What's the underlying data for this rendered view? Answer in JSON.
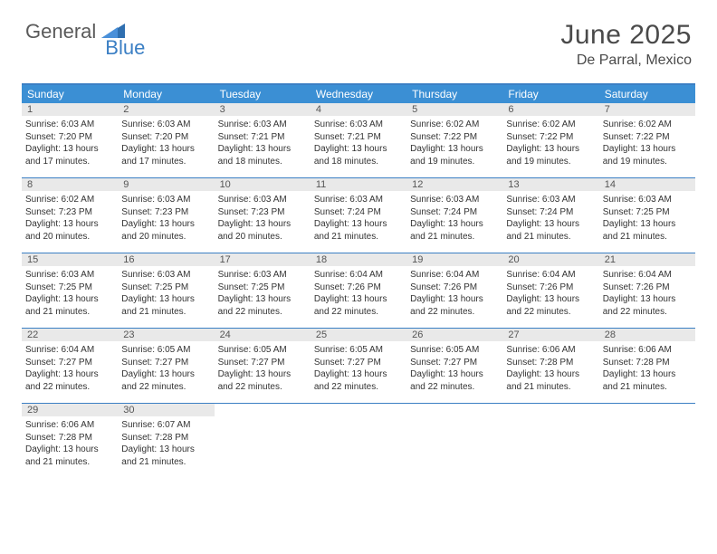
{
  "brand": {
    "part1": "General",
    "part2": "Blue"
  },
  "title": "June 2025",
  "location": "De Parral, Mexico",
  "colors": {
    "header_bg": "#3b8fd4",
    "border": "#3b7fc4",
    "daynum_bg": "#e9e9e9",
    "text": "#333333",
    "brand_gray": "#5a5a5a",
    "brand_blue": "#3b7fc4"
  },
  "dow": [
    "Sunday",
    "Monday",
    "Tuesday",
    "Wednesday",
    "Thursday",
    "Friday",
    "Saturday"
  ],
  "weeks": [
    [
      {
        "n": "1",
        "sr": "Sunrise: 6:03 AM",
        "ss": "Sunset: 7:20 PM",
        "d1": "Daylight: 13 hours",
        "d2": "and 17 minutes."
      },
      {
        "n": "2",
        "sr": "Sunrise: 6:03 AM",
        "ss": "Sunset: 7:20 PM",
        "d1": "Daylight: 13 hours",
        "d2": "and 17 minutes."
      },
      {
        "n": "3",
        "sr": "Sunrise: 6:03 AM",
        "ss": "Sunset: 7:21 PM",
        "d1": "Daylight: 13 hours",
        "d2": "and 18 minutes."
      },
      {
        "n": "4",
        "sr": "Sunrise: 6:03 AM",
        "ss": "Sunset: 7:21 PM",
        "d1": "Daylight: 13 hours",
        "d2": "and 18 minutes."
      },
      {
        "n": "5",
        "sr": "Sunrise: 6:02 AM",
        "ss": "Sunset: 7:22 PM",
        "d1": "Daylight: 13 hours",
        "d2": "and 19 minutes."
      },
      {
        "n": "6",
        "sr": "Sunrise: 6:02 AM",
        "ss": "Sunset: 7:22 PM",
        "d1": "Daylight: 13 hours",
        "d2": "and 19 minutes."
      },
      {
        "n": "7",
        "sr": "Sunrise: 6:02 AM",
        "ss": "Sunset: 7:22 PM",
        "d1": "Daylight: 13 hours",
        "d2": "and 19 minutes."
      }
    ],
    [
      {
        "n": "8",
        "sr": "Sunrise: 6:02 AM",
        "ss": "Sunset: 7:23 PM",
        "d1": "Daylight: 13 hours",
        "d2": "and 20 minutes."
      },
      {
        "n": "9",
        "sr": "Sunrise: 6:03 AM",
        "ss": "Sunset: 7:23 PM",
        "d1": "Daylight: 13 hours",
        "d2": "and 20 minutes."
      },
      {
        "n": "10",
        "sr": "Sunrise: 6:03 AM",
        "ss": "Sunset: 7:23 PM",
        "d1": "Daylight: 13 hours",
        "d2": "and 20 minutes."
      },
      {
        "n": "11",
        "sr": "Sunrise: 6:03 AM",
        "ss": "Sunset: 7:24 PM",
        "d1": "Daylight: 13 hours",
        "d2": "and 21 minutes."
      },
      {
        "n": "12",
        "sr": "Sunrise: 6:03 AM",
        "ss": "Sunset: 7:24 PM",
        "d1": "Daylight: 13 hours",
        "d2": "and 21 minutes."
      },
      {
        "n": "13",
        "sr": "Sunrise: 6:03 AM",
        "ss": "Sunset: 7:24 PM",
        "d1": "Daylight: 13 hours",
        "d2": "and 21 minutes."
      },
      {
        "n": "14",
        "sr": "Sunrise: 6:03 AM",
        "ss": "Sunset: 7:25 PM",
        "d1": "Daylight: 13 hours",
        "d2": "and 21 minutes."
      }
    ],
    [
      {
        "n": "15",
        "sr": "Sunrise: 6:03 AM",
        "ss": "Sunset: 7:25 PM",
        "d1": "Daylight: 13 hours",
        "d2": "and 21 minutes."
      },
      {
        "n": "16",
        "sr": "Sunrise: 6:03 AM",
        "ss": "Sunset: 7:25 PM",
        "d1": "Daylight: 13 hours",
        "d2": "and 21 minutes."
      },
      {
        "n": "17",
        "sr": "Sunrise: 6:03 AM",
        "ss": "Sunset: 7:25 PM",
        "d1": "Daylight: 13 hours",
        "d2": "and 22 minutes."
      },
      {
        "n": "18",
        "sr": "Sunrise: 6:04 AM",
        "ss": "Sunset: 7:26 PM",
        "d1": "Daylight: 13 hours",
        "d2": "and 22 minutes."
      },
      {
        "n": "19",
        "sr": "Sunrise: 6:04 AM",
        "ss": "Sunset: 7:26 PM",
        "d1": "Daylight: 13 hours",
        "d2": "and 22 minutes."
      },
      {
        "n": "20",
        "sr": "Sunrise: 6:04 AM",
        "ss": "Sunset: 7:26 PM",
        "d1": "Daylight: 13 hours",
        "d2": "and 22 minutes."
      },
      {
        "n": "21",
        "sr": "Sunrise: 6:04 AM",
        "ss": "Sunset: 7:26 PM",
        "d1": "Daylight: 13 hours",
        "d2": "and 22 minutes."
      }
    ],
    [
      {
        "n": "22",
        "sr": "Sunrise: 6:04 AM",
        "ss": "Sunset: 7:27 PM",
        "d1": "Daylight: 13 hours",
        "d2": "and 22 minutes."
      },
      {
        "n": "23",
        "sr": "Sunrise: 6:05 AM",
        "ss": "Sunset: 7:27 PM",
        "d1": "Daylight: 13 hours",
        "d2": "and 22 minutes."
      },
      {
        "n": "24",
        "sr": "Sunrise: 6:05 AM",
        "ss": "Sunset: 7:27 PM",
        "d1": "Daylight: 13 hours",
        "d2": "and 22 minutes."
      },
      {
        "n": "25",
        "sr": "Sunrise: 6:05 AM",
        "ss": "Sunset: 7:27 PM",
        "d1": "Daylight: 13 hours",
        "d2": "and 22 minutes."
      },
      {
        "n": "26",
        "sr": "Sunrise: 6:05 AM",
        "ss": "Sunset: 7:27 PM",
        "d1": "Daylight: 13 hours",
        "d2": "and 22 minutes."
      },
      {
        "n": "27",
        "sr": "Sunrise: 6:06 AM",
        "ss": "Sunset: 7:28 PM",
        "d1": "Daylight: 13 hours",
        "d2": "and 21 minutes."
      },
      {
        "n": "28",
        "sr": "Sunrise: 6:06 AM",
        "ss": "Sunset: 7:28 PM",
        "d1": "Daylight: 13 hours",
        "d2": "and 21 minutes."
      }
    ],
    [
      {
        "n": "29",
        "sr": "Sunrise: 6:06 AM",
        "ss": "Sunset: 7:28 PM",
        "d1": "Daylight: 13 hours",
        "d2": "and 21 minutes."
      },
      {
        "n": "30",
        "sr": "Sunrise: 6:07 AM",
        "ss": "Sunset: 7:28 PM",
        "d1": "Daylight: 13 hours",
        "d2": "and 21 minutes."
      },
      null,
      null,
      null,
      null,
      null
    ]
  ]
}
